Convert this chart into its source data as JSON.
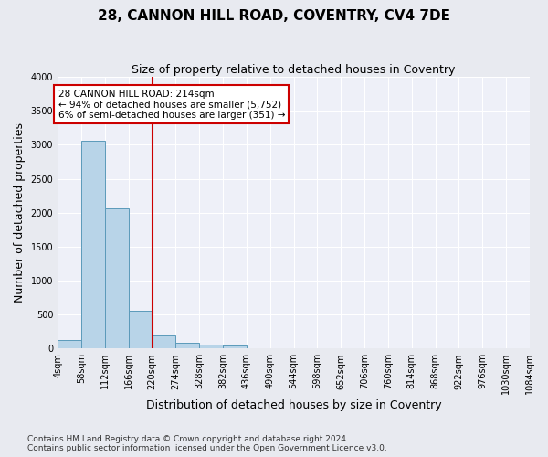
{
  "title": "28, CANNON HILL ROAD, COVENTRY, CV4 7DE",
  "subtitle": "Size of property relative to detached houses in Coventry",
  "xlabel": "Distribution of detached houses by size in Coventry",
  "ylabel": "Number of detached properties",
  "bar_values": [
    130,
    3060,
    2060,
    560,
    195,
    80,
    55,
    40,
    0,
    0,
    0,
    0,
    0,
    0,
    0,
    0,
    0,
    0,
    0,
    0
  ],
  "bin_edges": [
    4,
    58,
    112,
    166,
    220,
    274,
    328,
    382,
    436,
    490,
    544,
    598,
    652,
    706,
    760,
    814,
    868,
    922,
    976,
    1030,
    1084
  ],
  "tick_labels": [
    "4sqm",
    "58sqm",
    "112sqm",
    "166sqm",
    "220sqm",
    "274sqm",
    "328sqm",
    "382sqm",
    "436sqm",
    "490sqm",
    "544sqm",
    "598sqm",
    "652sqm",
    "706sqm",
    "760sqm",
    "814sqm",
    "868sqm",
    "922sqm",
    "976sqm",
    "1030sqm",
    "1084sqm"
  ],
  "bar_color": "#b8d4e8",
  "bar_edge_color": "#5b9aba",
  "vline_color": "#cc0000",
  "vline_x": 220,
  "annotation_text": "28 CANNON HILL ROAD: 214sqm\n← 94% of detached houses are smaller (5,752)\n6% of semi-detached houses are larger (351) →",
  "annotation_box_color": "#cc0000",
  "ylim": [
    0,
    4000
  ],
  "yticks": [
    0,
    500,
    1000,
    1500,
    2000,
    2500,
    3000,
    3500,
    4000
  ],
  "footer_line1": "Contains HM Land Registry data © Crown copyright and database right 2024.",
  "footer_line2": "Contains public sector information licensed under the Open Government Licence v3.0.",
  "background_color": "#e8eaf0",
  "plot_bg_color": "#eef0f8",
  "grid_color": "#ffffff",
  "title_fontsize": 11,
  "subtitle_fontsize": 9,
  "ylabel_fontsize": 9,
  "xlabel_fontsize": 9,
  "tick_fontsize": 7,
  "annotation_fontsize": 7.5,
  "footer_fontsize": 6.5
}
